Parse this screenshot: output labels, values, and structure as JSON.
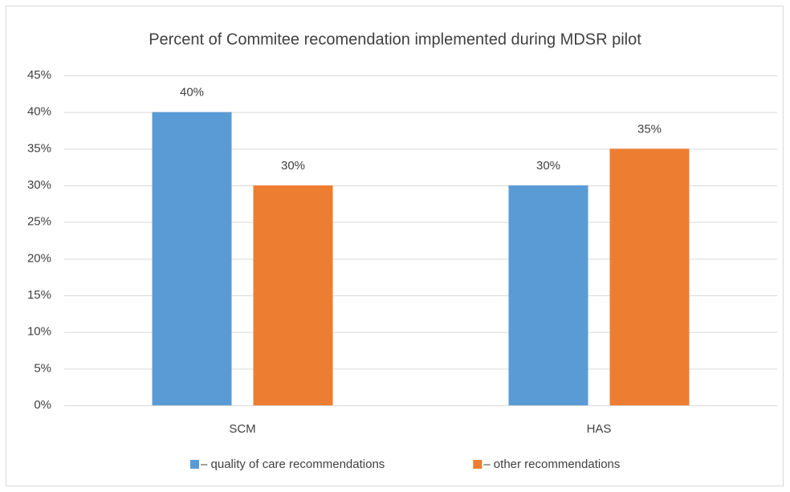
{
  "chart_data": {
    "type": "bar",
    "title": "Percent of Commitee recomendation implemented during MDSR pilot",
    "categories": [
      "SCM",
      "HAS"
    ],
    "series": [
      {
        "name": "– quality of care recommendations",
        "color": "#5b9bd5",
        "values": [
          40,
          30
        ],
        "value_labels": [
          "40%",
          "30%"
        ]
      },
      {
        "name": "– other recommendations",
        "color": "#ed7d31",
        "values": [
          30,
          35
        ],
        "value_labels": [
          "30%",
          "35%"
        ]
      }
    ],
    "ylim": [
      0,
      45
    ],
    "yticks": [
      {
        "value": 0,
        "label": "0%"
      },
      {
        "value": 5,
        "label": "5%"
      },
      {
        "value": 10,
        "label": "10%"
      },
      {
        "value": 15,
        "label": "15%"
      },
      {
        "value": 20,
        "label": "20%"
      },
      {
        "value": 25,
        "label": "25%"
      },
      {
        "value": 30,
        "label": "30%"
      },
      {
        "value": 35,
        "label": "35%"
      },
      {
        "value": 40,
        "label": "40%"
      },
      {
        "value": 45,
        "label": "45%"
      }
    ],
    "grid": true,
    "legend": "bottom"
  }
}
